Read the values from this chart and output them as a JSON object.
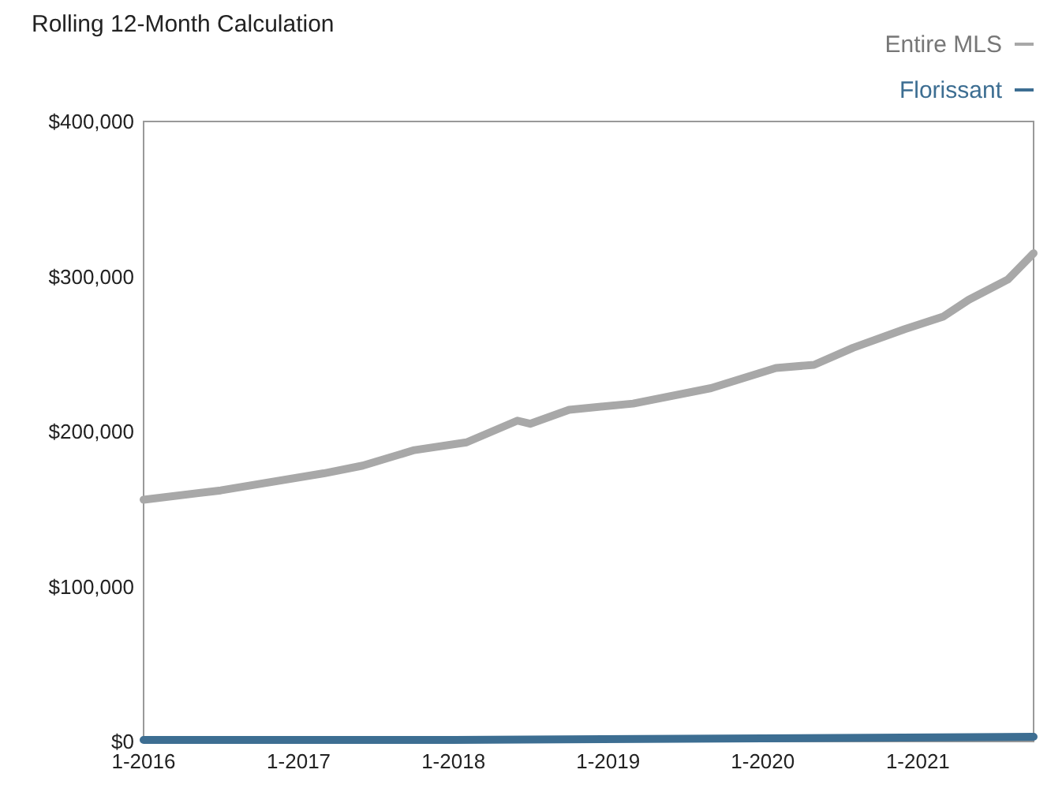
{
  "chart_data": {
    "type": "line",
    "title": "Rolling 12-Month Calculation",
    "legend": "top right",
    "grid": false,
    "xlim": [
      "2016-01",
      "2021-10"
    ],
    "xticks": [
      {
        "value": "2016-01",
        "label": "1-2016"
      },
      {
        "value": "2017-01",
        "label": "1-2017"
      },
      {
        "value": "2018-01",
        "label": "1-2018"
      },
      {
        "value": "2019-01",
        "label": "1-2019"
      },
      {
        "value": "2020-01",
        "label": "1-2020"
      },
      {
        "value": "2021-01",
        "label": "1-2021"
      }
    ],
    "ylim": [
      0,
      400000
    ],
    "yticks": [
      {
        "value": 0,
        "label": "$0"
      },
      {
        "value": 100000,
        "label": "$100,000"
      },
      {
        "value": 200000,
        "label": "$200,000"
      },
      {
        "value": 300000,
        "label": "$300,000"
      },
      {
        "value": 400000,
        "label": "$400,000"
      }
    ],
    "series": [
      {
        "name": "Entire MLS",
        "color": "#a8a8a8",
        "x": [
          "2016-01",
          "2016-07",
          "2017-03",
          "2017-06",
          "2017-10",
          "2018-02",
          "2018-06",
          "2018-07",
          "2018-10",
          "2019-03",
          "2019-09",
          "2020-02",
          "2020-05",
          "2020-08",
          "2020-12",
          "2021-03",
          "2021-05",
          "2021-08",
          "2021-10"
        ],
        "values": [
          156000,
          162000,
          173000,
          178000,
          188000,
          193000,
          207000,
          205000,
          214000,
          218000,
          228000,
          241000,
          243000,
          254000,
          266000,
          274000,
          285000,
          298000,
          315000
        ]
      },
      {
        "name": "Florissant",
        "color": "#3d6e92",
        "x": [
          "2016-01",
          "2018-01",
          "2020-01",
          "2021-10"
        ],
        "values": [
          1000,
          1000,
          2000,
          3000
        ]
      }
    ]
  }
}
